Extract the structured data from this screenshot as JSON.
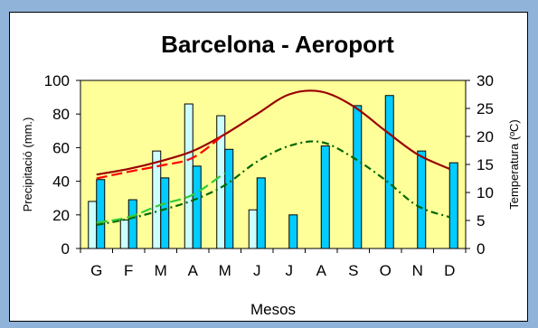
{
  "chart_data": {
    "type": "bar",
    "title": "Barcelona - Aeroport",
    "xlabel": "Mesos",
    "ylabel": "Precipitació (mm.)",
    "y2label": "Temperatura (ºC)",
    "categories": [
      "G",
      "F",
      "M",
      "A",
      "M",
      "J",
      "J",
      "A",
      "S",
      "O",
      "N",
      "D"
    ],
    "ylim": [
      0,
      100
    ],
    "yticks": [
      0,
      20,
      40,
      60,
      80,
      100
    ],
    "y2lim": [
      0,
      30
    ],
    "y2ticks": [
      0,
      5,
      10,
      15,
      20,
      25,
      30
    ],
    "plot_background": "#ffff99",
    "grid": false,
    "series": [
      {
        "kind": "bar",
        "color": "#ccffff",
        "values": [
          28,
          17,
          58,
          86,
          79,
          23,
          null,
          null,
          null,
          null,
          null,
          null
        ]
      },
      {
        "kind": "bar",
        "color": "#00ccff",
        "values": [
          41,
          29,
          42,
          49,
          59,
          42,
          20,
          61,
          85,
          91,
          58,
          51
        ]
      },
      {
        "kind": "line",
        "axis": "y2",
        "style": "solid",
        "color": "#990000",
        "values": [
          13.2,
          14.2,
          15.6,
          17.4,
          20.4,
          24.0,
          27.5,
          28.0,
          25.4,
          21.0,
          16.8,
          14.2
        ]
      },
      {
        "kind": "line",
        "axis": "y2",
        "style": "dashed",
        "color": "#ff0000",
        "values": [
          12.5,
          13.7,
          14.8,
          16.2,
          20.5,
          null,
          null,
          null,
          null,
          null,
          null,
          null
        ]
      },
      {
        "kind": "line",
        "axis": "y2",
        "style": "dashdot",
        "color": "#006600",
        "values": [
          4.2,
          5.3,
          6.8,
          8.6,
          11.3,
          15.5,
          18.3,
          19.0,
          16.2,
          12.2,
          7.6,
          5.6
        ]
      },
      {
        "kind": "line",
        "axis": "y2",
        "style": "dashed",
        "color": "#33cc33",
        "values": [
          4.6,
          5.6,
          7.8,
          9.6,
          13.5,
          null,
          null,
          null,
          null,
          null,
          null,
          null
        ]
      }
    ]
  }
}
